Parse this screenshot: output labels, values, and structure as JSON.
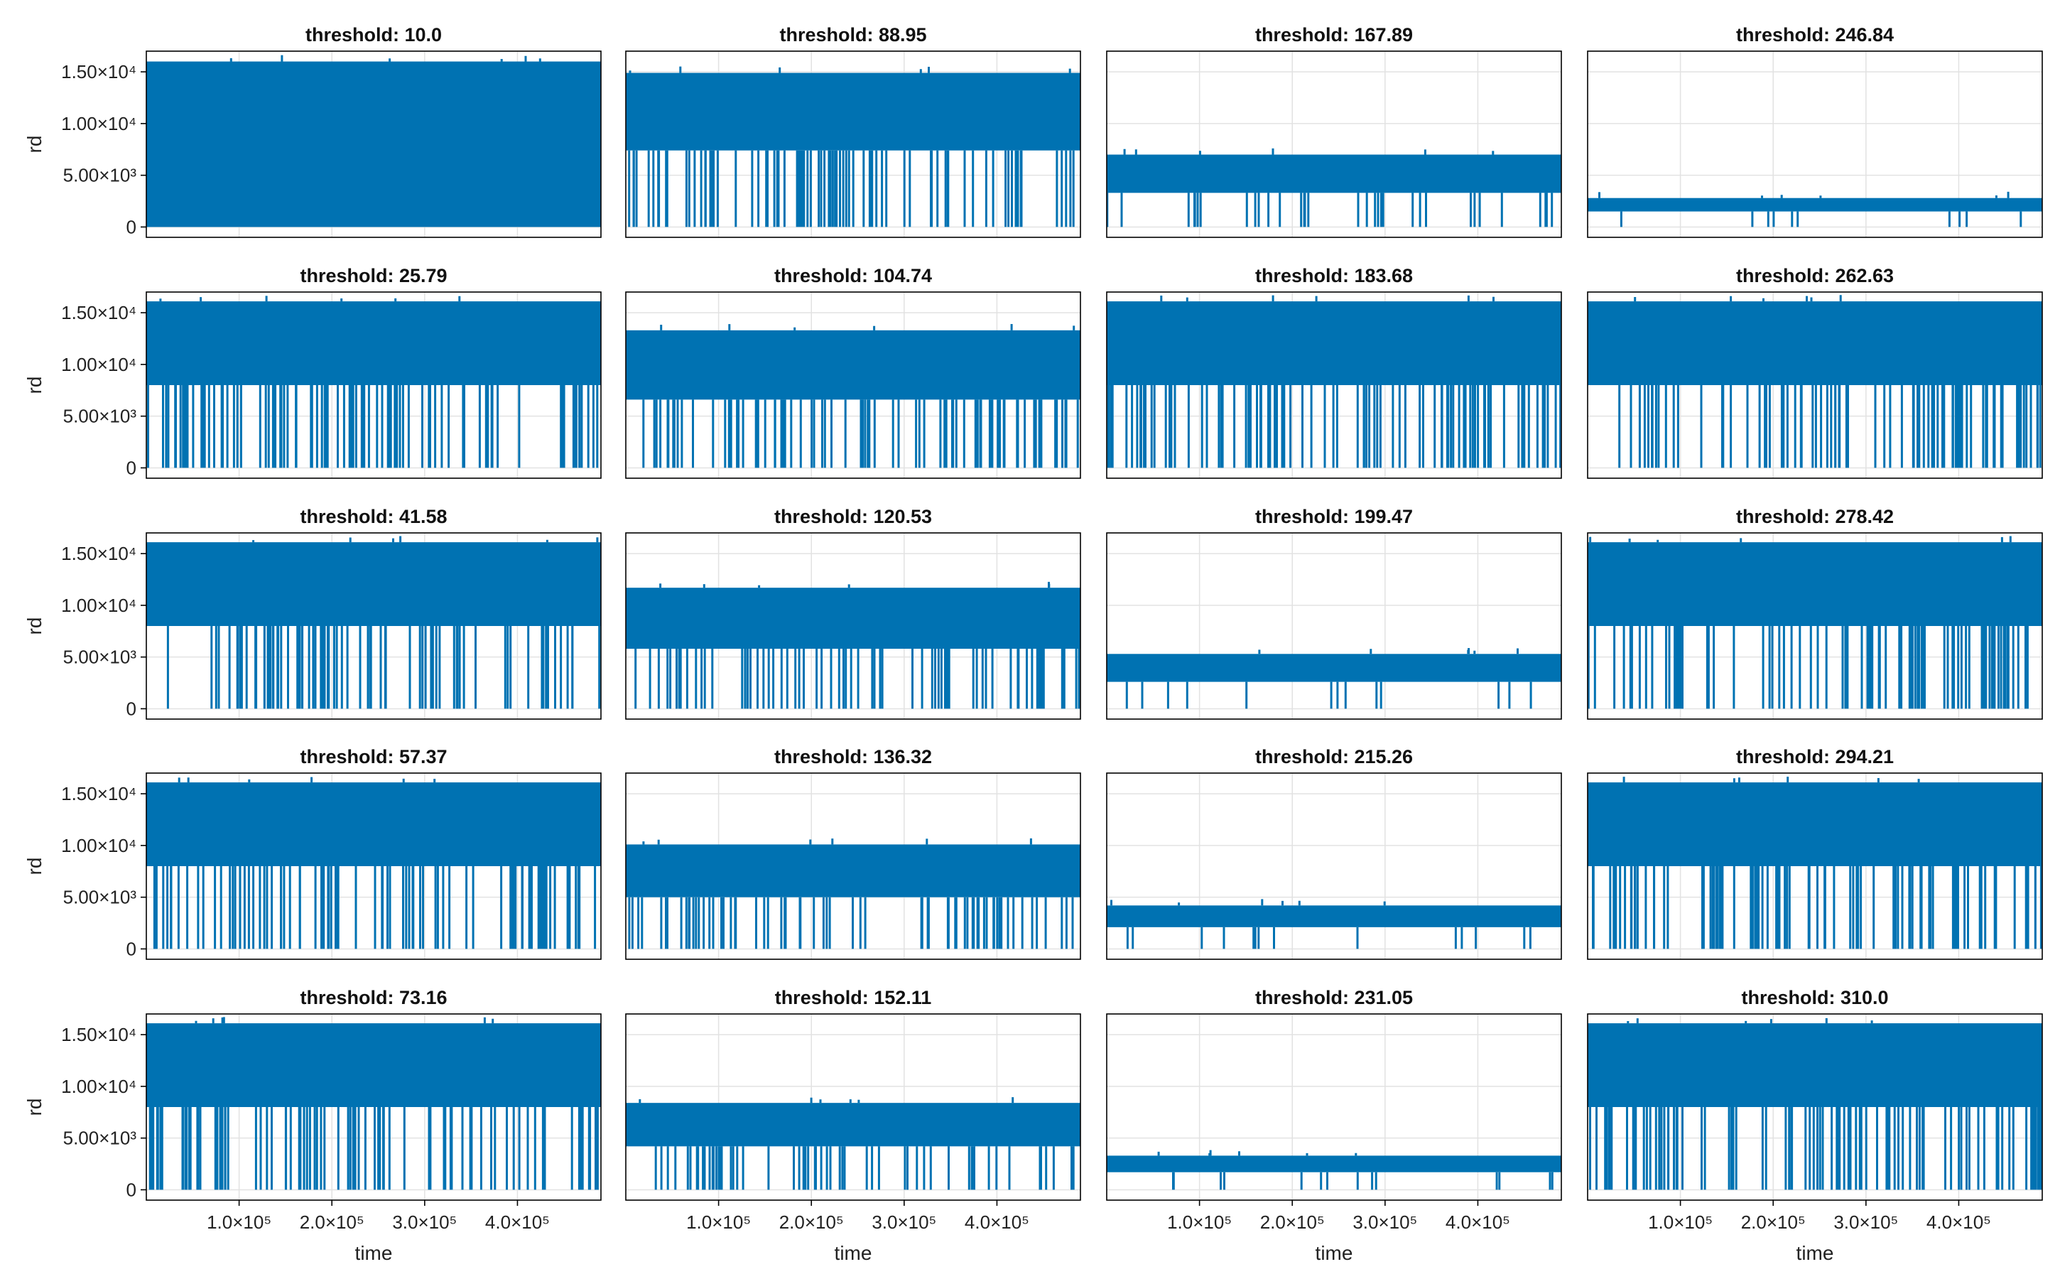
{
  "chart_data": {
    "type": "line",
    "layout": {
      "rows": 5,
      "cols": 4
    },
    "series_color": "#0072B2",
    "grid": true,
    "xlabel": "time",
    "ylabel": "rd",
    "xlim": [
      0,
      490000
    ],
    "ylim": [
      -1000,
      17000
    ],
    "xticks": [
      100000,
      200000,
      300000,
      400000
    ],
    "xtick_labels": [
      "1.0×10⁵",
      "2.0×10⁵",
      "3.0×10⁵",
      "4.0×10⁵"
    ],
    "yticks": [
      0,
      5000,
      10000,
      15000
    ],
    "ytick_labels": [
      "0",
      "5.00×10³",
      "1.00×10⁴",
      "1.50×10⁴"
    ],
    "panels": [
      {
        "title": "threshold: 10.0",
        "row": 0,
        "col": 0,
        "band_low": 0,
        "band_high": 16000,
        "dip_level": 0,
        "dip_count": 70
      },
      {
        "title": "threshold: 88.95",
        "row": 0,
        "col": 1,
        "band_low": 7400,
        "band_high": 14900,
        "dip_level": 0,
        "dip_count": 60
      },
      {
        "title": "threshold: 167.89",
        "row": 0,
        "col": 2,
        "band_low": 3300,
        "band_high": 7000,
        "dip_level": 0,
        "dip_count": 25
      },
      {
        "title": "threshold: 246.84",
        "row": 0,
        "col": 3,
        "band_low": 1500,
        "band_high": 2800,
        "dip_level": 0,
        "dip_count": 8
      },
      {
        "title": "threshold: 25.79",
        "row": 1,
        "col": 0,
        "band_low": 8000,
        "band_high": 16100,
        "dip_level": 0,
        "dip_count": 65
      },
      {
        "title": "threshold: 104.74",
        "row": 1,
        "col": 1,
        "band_low": 6600,
        "band_high": 13300,
        "dip_level": 0,
        "dip_count": 60
      },
      {
        "title": "threshold: 183.68",
        "row": 1,
        "col": 2,
        "band_low": 8000,
        "band_high": 16100,
        "dip_level": 0,
        "dip_count": 65
      },
      {
        "title": "threshold: 262.63",
        "row": 1,
        "col": 3,
        "band_low": 8000,
        "band_high": 16100,
        "dip_level": 0,
        "dip_count": 65
      },
      {
        "title": "threshold: 41.58",
        "row": 2,
        "col": 0,
        "band_low": 8000,
        "band_high": 16100,
        "dip_level": 0,
        "dip_count": 60
      },
      {
        "title": "threshold: 120.53",
        "row": 2,
        "col": 1,
        "band_low": 5800,
        "band_high": 11700,
        "dip_level": 0,
        "dip_count": 55
      },
      {
        "title": "threshold: 199.47",
        "row": 2,
        "col": 2,
        "band_low": 2600,
        "band_high": 5300,
        "dip_level": 0,
        "dip_count": 12
      },
      {
        "title": "threshold: 278.42",
        "row": 2,
        "col": 3,
        "band_low": 8000,
        "band_high": 16100,
        "dip_level": 0,
        "dip_count": 65
      },
      {
        "title": "threshold: 57.37",
        "row": 3,
        "col": 0,
        "band_low": 8000,
        "band_high": 16100,
        "dip_level": 0,
        "dip_count": 65
      },
      {
        "title": "threshold: 136.32",
        "row": 3,
        "col": 1,
        "band_low": 5000,
        "band_high": 10100,
        "dip_level": 0,
        "dip_count": 55
      },
      {
        "title": "threshold: 215.26",
        "row": 3,
        "col": 2,
        "band_low": 2100,
        "band_high": 4200,
        "dip_level": 0,
        "dip_count": 10
      },
      {
        "title": "threshold: 294.21",
        "row": 3,
        "col": 3,
        "band_low": 8000,
        "band_high": 16100,
        "dip_level": 0,
        "dip_count": 65
      },
      {
        "title": "threshold: 73.16",
        "row": 4,
        "col": 0,
        "band_low": 8000,
        "band_high": 16100,
        "dip_level": 0,
        "dip_count": 65
      },
      {
        "title": "threshold: 152.11",
        "row": 4,
        "col": 1,
        "band_low": 4200,
        "band_high": 8400,
        "dip_level": 0,
        "dip_count": 45
      },
      {
        "title": "threshold: 231.05",
        "row": 4,
        "col": 2,
        "band_low": 1700,
        "band_high": 3300,
        "dip_level": 0,
        "dip_count": 10
      },
      {
        "title": "threshold: 310.0",
        "row": 4,
        "col": 3,
        "band_low": 8000,
        "band_high": 16100,
        "dip_level": 0,
        "dip_count": 65
      }
    ]
  }
}
